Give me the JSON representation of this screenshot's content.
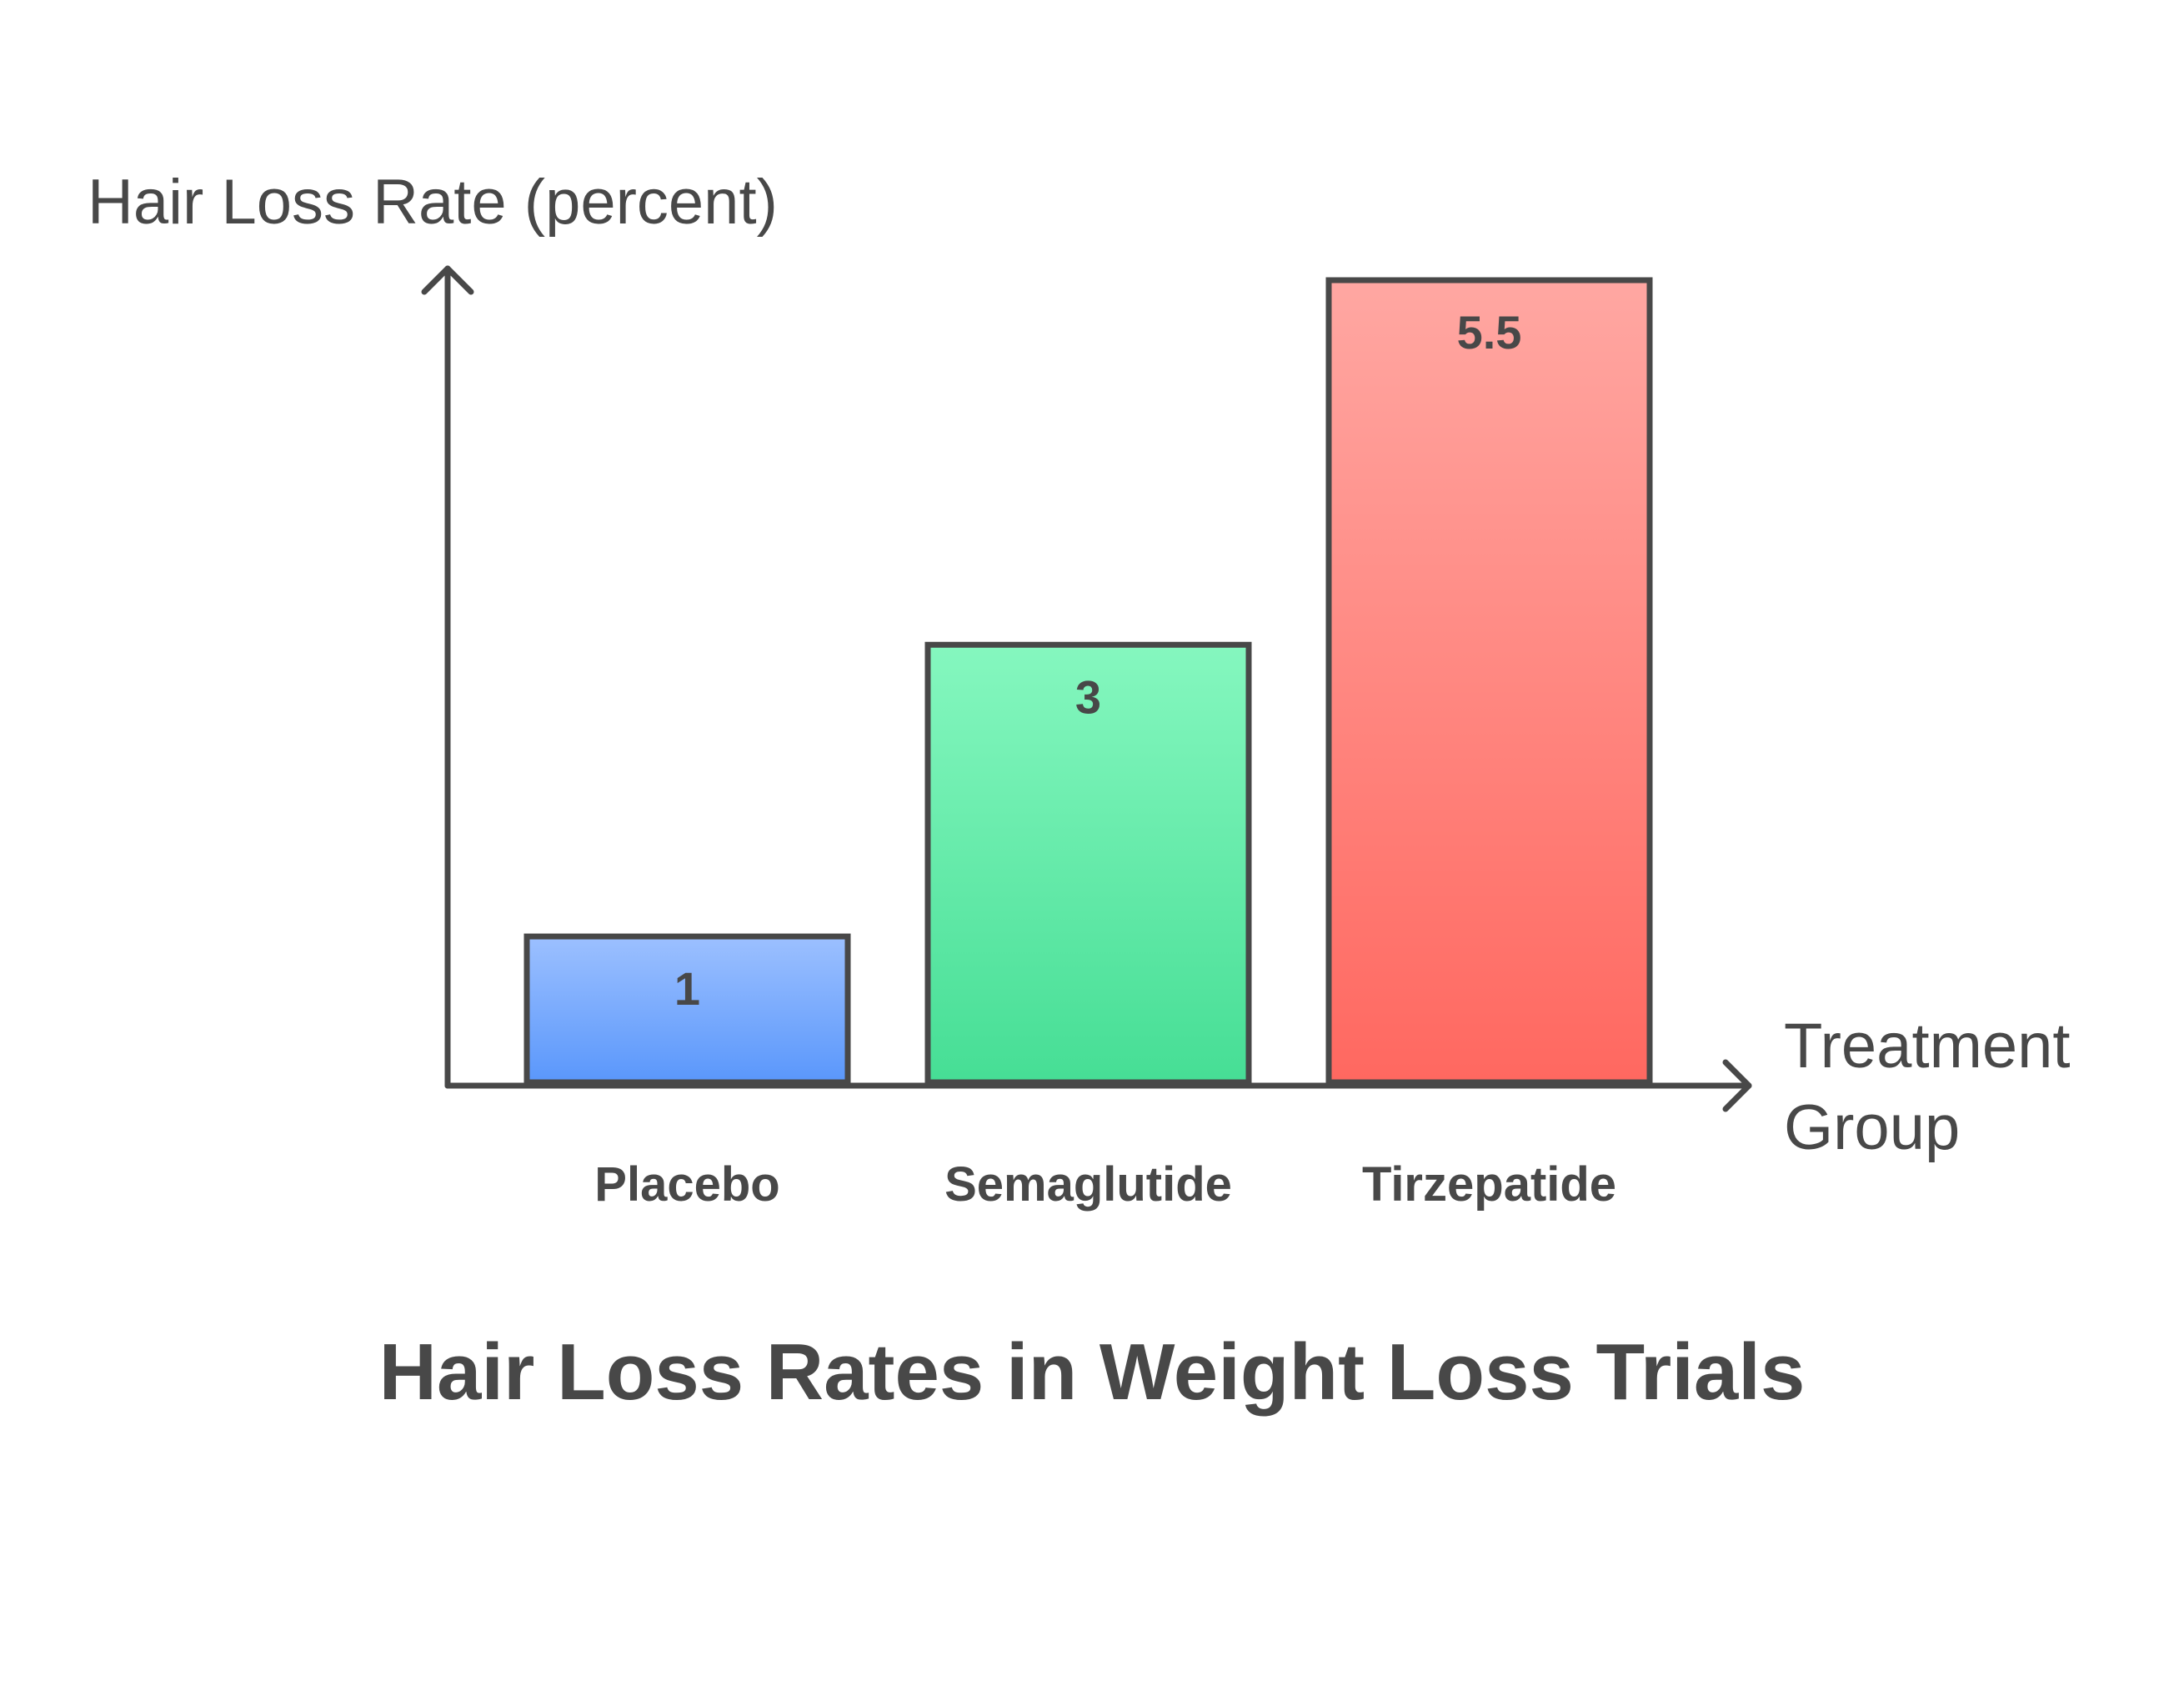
{
  "chart_data": {
    "type": "bar",
    "title": "Hair Loss Rates in Weight Loss Trials",
    "ylabel": "Hair Loss Rate (percent)",
    "xlabel_lines": [
      "Treatment",
      "Group"
    ],
    "categories": [
      "Placebo",
      "Semaglutide",
      "Tirzepatide"
    ],
    "values": [
      1,
      3,
      5.5
    ],
    "value_labels": [
      "1",
      "3",
      "5.5"
    ],
    "colors": [
      {
        "top": "#9cc0ff",
        "bottom": "#5a97fb"
      },
      {
        "top": "#85f7bf",
        "bottom": "#46de95"
      },
      {
        "top": "#ffa7a2",
        "bottom": "#ff6860"
      }
    ],
    "ylim": [
      0,
      5.5
    ],
    "grid": false,
    "legend": "none"
  }
}
